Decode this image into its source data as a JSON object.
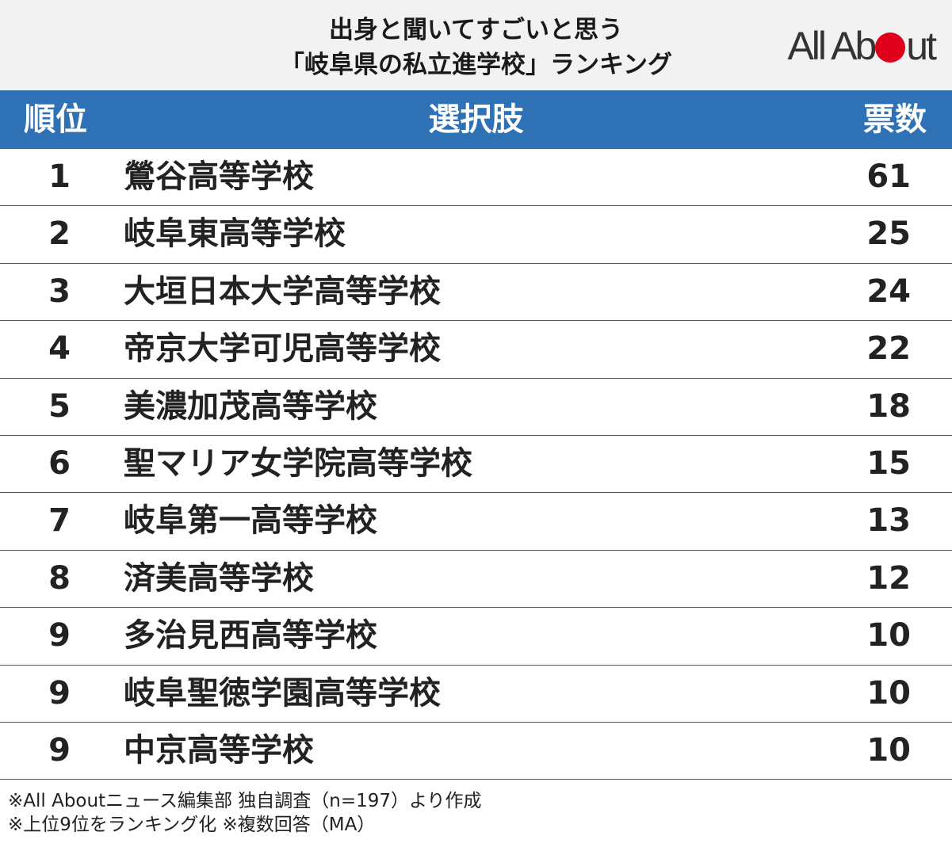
{
  "title_line1": "出身と聞いてすごいと思う",
  "title_line2": "「岐阜県の私立進学校」ランキング",
  "logo": {
    "left": "All Ab",
    "right": "ut",
    "dot_color": "#e0001b"
  },
  "colors": {
    "header_bg": "#f2f2f2",
    "table_header_bg": "#2e72b5",
    "accent": "#e0001b"
  },
  "footnotes": [
    "※All Aboutニュース編集部 独自調査（n=197）より作成",
    "※上位9位をランキング化 ※複数回答（MA）"
  ],
  "chart_data": {
    "type": "table",
    "columns": [
      "順位",
      "選択肢",
      "票数"
    ],
    "rows": [
      {
        "rank": "1",
        "name": "鶯谷高等学校",
        "votes": 61
      },
      {
        "rank": "2",
        "name": "岐阜東高等学校",
        "votes": 25
      },
      {
        "rank": "3",
        "name": "大垣日本大学高等学校",
        "votes": 24
      },
      {
        "rank": "4",
        "name": "帝京大学可児高等学校",
        "votes": 22
      },
      {
        "rank": "5",
        "name": "美濃加茂高等学校",
        "votes": 18
      },
      {
        "rank": "6",
        "name": "聖マリア女学院高等学校",
        "votes": 15
      },
      {
        "rank": "7",
        "name": "岐阜第一高等学校",
        "votes": 13
      },
      {
        "rank": "8",
        "name": "済美高等学校",
        "votes": 12
      },
      {
        "rank": "9",
        "name": "多治見西高等学校",
        "votes": 10
      },
      {
        "rank": "9",
        "name": "岐阜聖徳学園高等学校",
        "votes": 10
      },
      {
        "rank": "9",
        "name": "中京高等学校",
        "votes": 10
      }
    ]
  }
}
